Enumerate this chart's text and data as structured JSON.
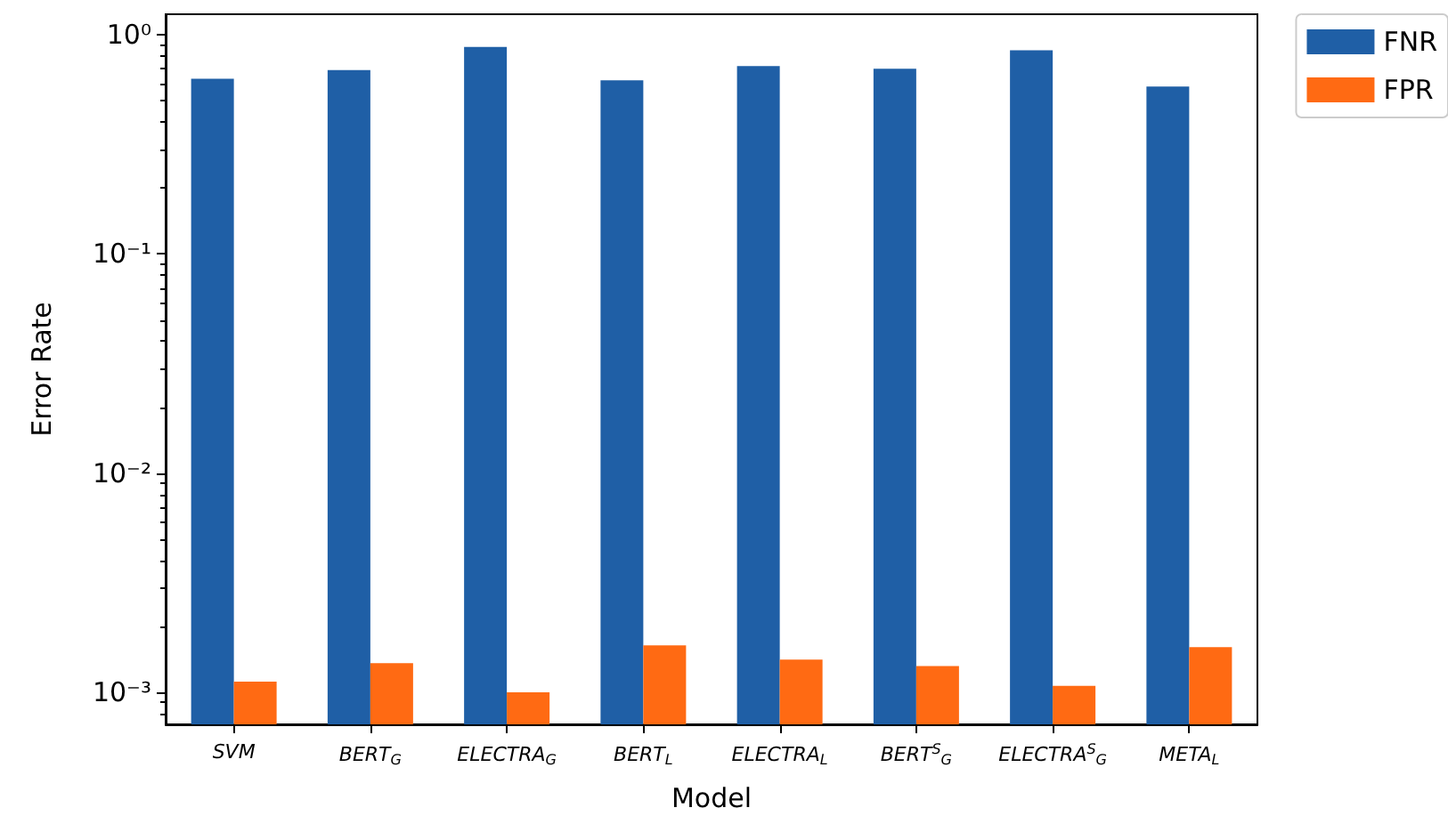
{
  "chart_data": {
    "type": "bar",
    "xlabel": "Model",
    "ylabel": "Error Rate",
    "log": true,
    "legend": "top right",
    "categories": [
      "SVM",
      "BERT$_{G}$",
      "ELECTRA$_{G}$",
      "BERT$_{L}$",
      "ELECTRA$_{L}$",
      "BERT$^{S}$$_{G}$",
      "ELECTRA$^{S}$$_{G}$",
      "META$_{L}$"
    ],
    "series": [
      {
        "name": "FNR",
        "color": "#1f5fa6",
        "values": [
          0.63,
          0.69,
          0.88,
          0.62,
          0.72,
          0.7,
          0.85,
          0.58
        ]
      },
      {
        "name": "FPR",
        "color": "#ff6a13",
        "values": [
          0.00112,
          0.00136,
          0.001,
          0.00164,
          0.00141,
          0.00132,
          0.00107,
          0.00161
        ]
      }
    ],
    "ylim": [
      0.000715,
      1.24
    ],
    "yticks": [
      {
        "value": 0.0008,
        "label": null
      },
      {
        "value": 0.0009,
        "label": null
      },
      {
        "value": 0.001,
        "label": "10⁻³"
      },
      {
        "value": 0.002,
        "label": null
      },
      {
        "value": 0.003,
        "label": null
      },
      {
        "value": 0.004,
        "label": null
      },
      {
        "value": 0.005,
        "label": null
      },
      {
        "value": 0.006,
        "label": null
      },
      {
        "value": 0.007,
        "label": null
      },
      {
        "value": 0.008,
        "label": null
      },
      {
        "value": 0.009,
        "label": null
      },
      {
        "value": 0.01,
        "label": "10⁻²"
      },
      {
        "value": 0.02,
        "label": null
      },
      {
        "value": 0.03,
        "label": null
      },
      {
        "value": 0.04,
        "label": null
      },
      {
        "value": 0.05,
        "label": null
      },
      {
        "value": 0.06,
        "label": null
      },
      {
        "value": 0.07,
        "label": null
      },
      {
        "value": 0.08,
        "label": null
      },
      {
        "value": 0.09,
        "label": null
      },
      {
        "value": 0.1,
        "label": "10⁻¹"
      },
      {
        "value": 0.2,
        "label": null
      },
      {
        "value": 0.3,
        "label": null
      },
      {
        "value": 0.4,
        "label": null
      },
      {
        "value": 0.5,
        "label": null
      },
      {
        "value": 0.6,
        "label": null
      },
      {
        "value": 0.7,
        "label": null
      },
      {
        "value": 0.8,
        "label": null
      },
      {
        "value": 0.9,
        "label": null
      },
      {
        "value": 1,
        "label": "10⁰"
      }
    ]
  }
}
